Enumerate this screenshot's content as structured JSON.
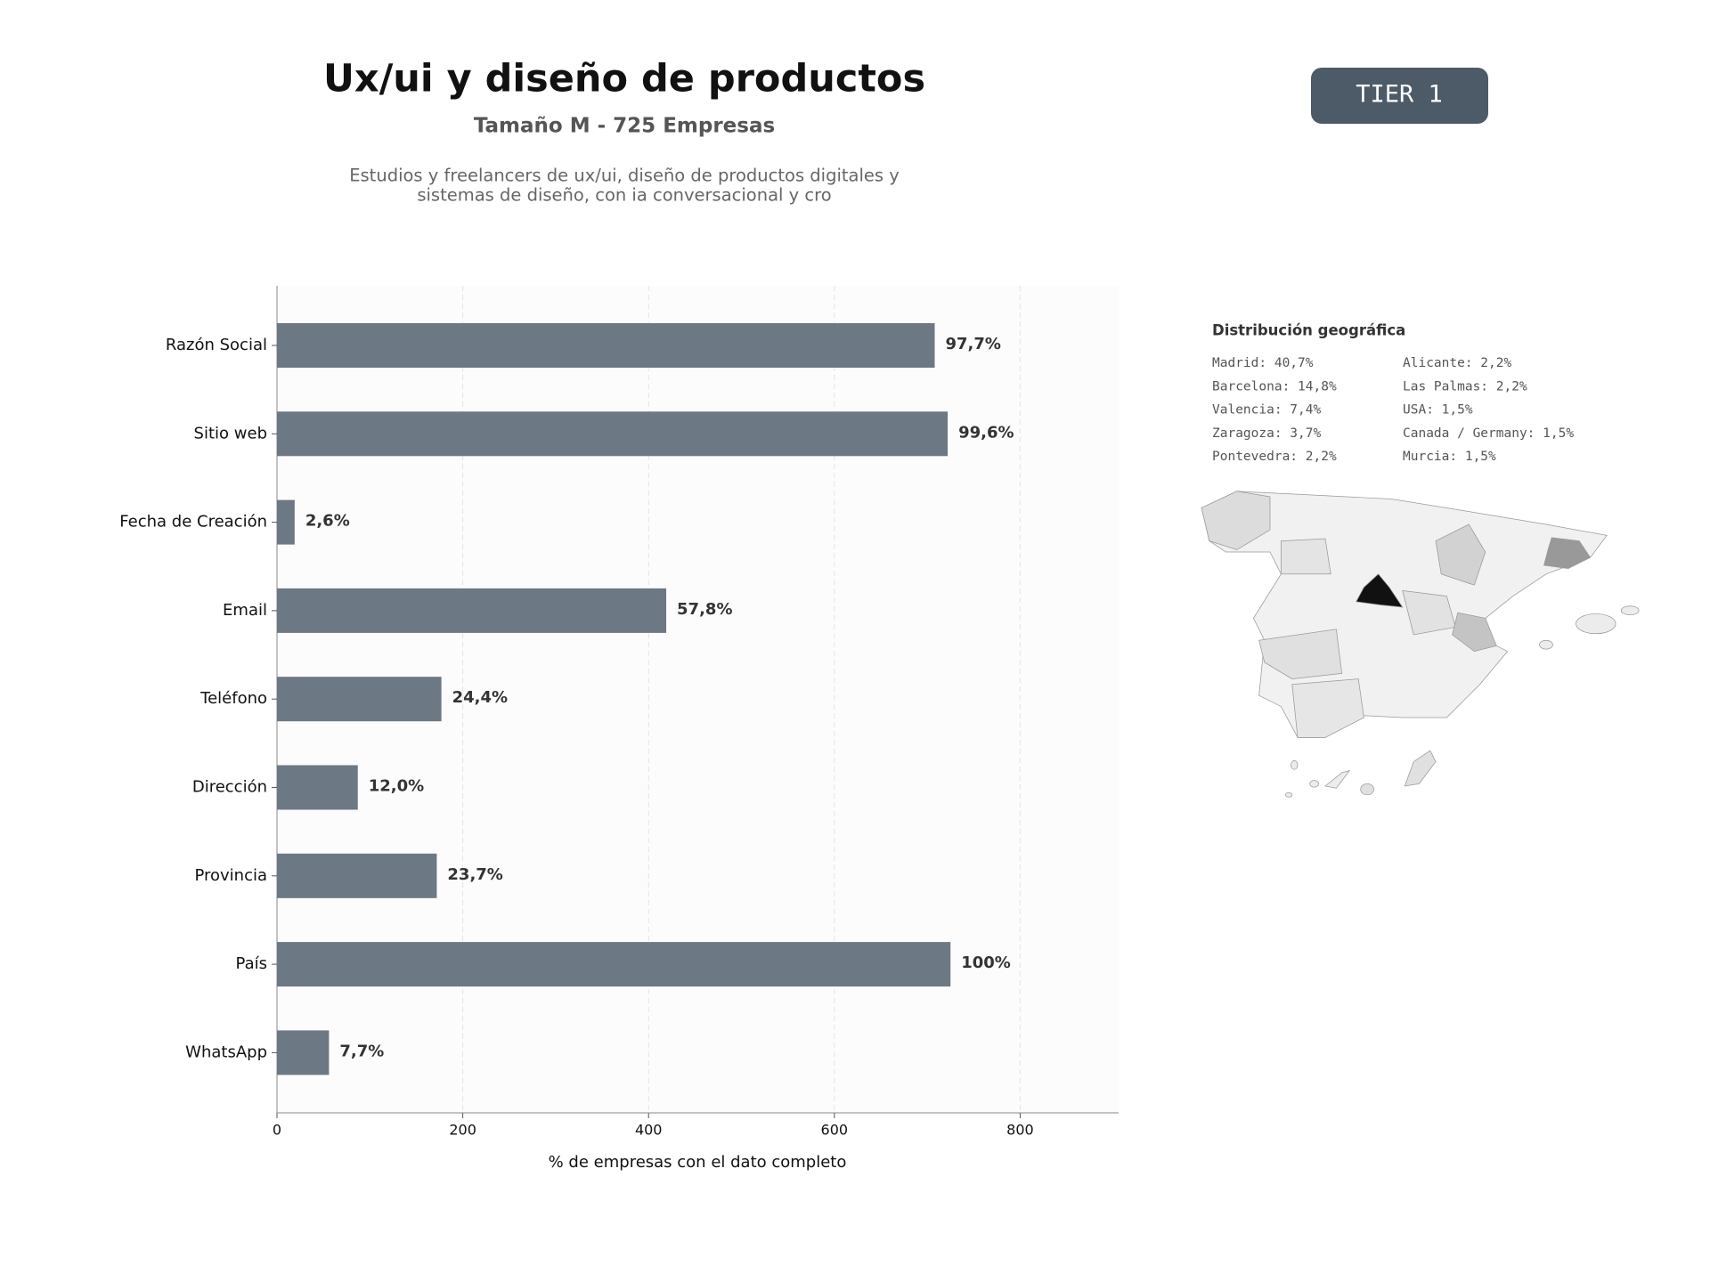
{
  "header": {
    "title": "Ux/ui y diseño de productos",
    "subtitle": "Tamaño M - 725 Empresas",
    "description": [
      "Estudios y freelancers de ux/ui, diseño de productos digitales y",
      "sistemas de diseño, con ia conversacional y cro"
    ],
    "badge": "TIER 1"
  },
  "chart_data": {
    "type": "bar",
    "orientation": "horizontal",
    "categories": [
      "Razón Social",
      "Sitio web",
      "Fecha de Creación",
      "Email",
      "Teléfono",
      "Dirección",
      "Provincia",
      "País",
      "WhatsApp"
    ],
    "values": [
      708,
      722,
      19,
      419,
      177,
      87,
      172,
      725,
      56
    ],
    "value_labels": [
      "97,7%",
      "99,6%",
      "2,6%",
      "57,8%",
      "24,4%",
      "12,0%",
      "23,7%",
      "100%",
      "7,7%"
    ],
    "color": "#6c7883",
    "xlabel": "% de empresas con el dato completo",
    "xlim": [
      0,
      906
    ],
    "xticks": [
      0,
      200,
      400,
      600,
      800
    ],
    "grid": true
  },
  "geo_distribution": {
    "title": "Distribución geográfica",
    "items": [
      "Madrid: 40,7%",
      "Barcelona: 14,8%",
      "Valencia: 7,4%",
      "Zaragoza: 3,7%",
      "Pontevedra: 2,2%",
      "Alicante: 2,2%",
      "Las Palmas: 2,2%",
      "USA: 1,5%",
      "Canada / Germany: 1,5%",
      "Murcia: 1,5%"
    ]
  }
}
